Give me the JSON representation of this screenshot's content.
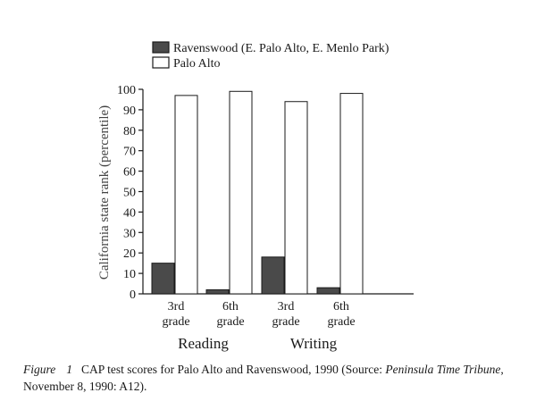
{
  "chart_data": {
    "type": "bar",
    "ylabel": "California state rank (percentile)",
    "ylim": [
      0,
      100
    ],
    "yticks": [
      0,
      10,
      20,
      30,
      40,
      50,
      60,
      70,
      80,
      90,
      100
    ],
    "categories": [
      {
        "line1": "3rd",
        "line2": "grade"
      },
      {
        "line1": "6th",
        "line2": "grade"
      },
      {
        "line1": "3rd",
        "line2": "grade"
      },
      {
        "line1": "6th",
        "line2": "grade"
      }
    ],
    "groups": [
      {
        "label": "Reading",
        "categories": [
          0,
          1
        ]
      },
      {
        "label": "Writing",
        "categories": [
          2,
          3
        ]
      }
    ],
    "series": [
      {
        "name": "Ravenswood (E. Palo Alto, E. Menlo Park)",
        "color": "#4a4a4a",
        "values": [
          15,
          2,
          18,
          3
        ]
      },
      {
        "name": "Palo Alto",
        "color": "#ffffff",
        "values": [
          97,
          99,
          94,
          98
        ]
      }
    ],
    "legend_position": "top",
    "grid": false
  },
  "caption": {
    "label": "Figure",
    "number": "1",
    "text_before": "CAP test scores for Palo Alto and Ravenswood, 1990 (Source: ",
    "source_italic": "Peninsula Time Tribune",
    "text_after": ", November 8, 1990: A12)."
  }
}
